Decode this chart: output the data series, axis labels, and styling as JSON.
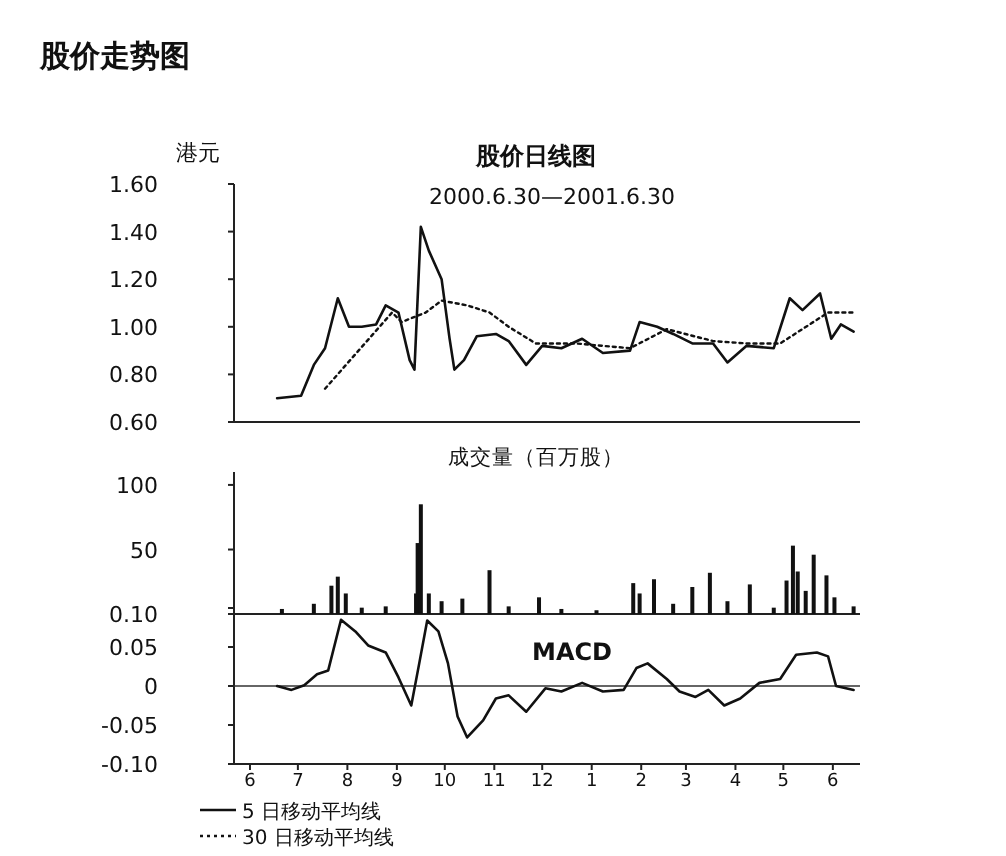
{
  "chart_data": [
    {
      "type": "line",
      "title": "股价走势图",
      "subtitle": "股价日线图",
      "ylabel": "港元",
      "annotations": [
        "2000.6.30—2001.6.30"
      ],
      "legend": "bottom",
      "tick_labels": "y",
      "grid": false,
      "xlim": [
        "2000-06-05",
        "2001-07-02"
      ],
      "ylim": [
        0.6,
        1.6
      ],
      "yticks": [
        {
          "value": 0.6,
          "label": "0.60"
        },
        {
          "value": 0.8,
          "label": "0.80"
        },
        {
          "value": 1.0,
          "label": "1.00"
        },
        {
          "value": 1.2,
          "label": "1.20"
        },
        {
          "value": 1.4,
          "label": "1.40"
        },
        {
          "value": 1.6,
          "label": "1.60"
        }
      ],
      "series": [
        {
          "name": "5 日移动平均线",
          "color": "#111111",
          "line_style": "solid",
          "x": [
            "2000-07-02",
            "2000-07-17",
            "2000-07-25",
            "2000-08-01",
            "2000-08-09",
            "2000-08-16",
            "2000-08-24",
            "2000-09-02",
            "2000-09-08",
            "2000-09-16",
            "2000-09-23",
            "2000-09-26",
            "2000-09-30",
            "2000-10-05",
            "2000-10-13",
            "2000-10-18",
            "2000-10-21",
            "2000-10-27",
            "2000-11-04",
            "2000-11-16",
            "2000-11-24",
            "2000-12-05",
            "2000-12-15",
            "2000-12-27",
            "2001-01-09",
            "2001-01-22",
            "2001-02-08",
            "2001-02-14",
            "2001-02-25",
            "2001-03-07",
            "2001-03-19",
            "2001-04-01",
            "2001-04-10",
            "2001-04-22",
            "2001-05-09",
            "2001-05-19",
            "2001-05-27",
            "2001-06-07",
            "2001-06-14",
            "2001-06-20",
            "2001-06-28"
          ],
          "values": [
            0.7,
            0.71,
            0.84,
            0.91,
            1.12,
            1.0,
            1.0,
            1.01,
            1.09,
            1.06,
            0.86,
            0.82,
            1.42,
            1.32,
            1.2,
            0.95,
            0.82,
            0.86,
            0.96,
            0.97,
            0.94,
            0.84,
            0.92,
            0.91,
            0.95,
            0.89,
            0.9,
            1.02,
            1.0,
            0.97,
            0.93,
            0.93,
            0.85,
            0.92,
            0.91,
            1.12,
            1.07,
            1.14,
            0.95,
            1.01,
            0.98
          ]
        },
        {
          "name": "30 日移动平均线",
          "color": "#111111",
          "line_style": "dotted",
          "x": [
            "2000-08-01",
            "2000-09-12",
            "2000-09-18",
            "2000-10-03",
            "2000-10-13",
            "2000-10-29",
            "2000-11-12",
            "2000-11-24",
            "2000-12-11",
            "2001-01-05",
            "2001-02-08",
            "2001-03-03",
            "2001-04-01",
            "2001-04-22",
            "2001-05-13",
            "2001-06-12",
            "2001-06-28"
          ],
          "values": [
            0.74,
            1.06,
            1.02,
            1.06,
            1.11,
            1.09,
            1.06,
            1.0,
            0.93,
            0.93,
            0.91,
            0.99,
            0.94,
            0.93,
            0.93,
            1.06,
            1.06
          ]
        }
      ]
    },
    {
      "type": "bar",
      "title": "成交量（百万股）",
      "tick_labels": "y",
      "grid": false,
      "color": "#111111",
      "xlim": [
        "2000-06-05",
        "2001-07-02"
      ],
      "ylim": [
        0.1,
        110
      ],
      "yticks": [
        {
          "value": 0.1,
          "label": "0.10"
        },
        50,
        100
      ],
      "x": [
        "2000-07-05",
        "2000-07-25",
        "2000-08-05",
        "2000-08-09",
        "2000-08-14",
        "2000-08-24",
        "2000-09-08",
        "2000-09-27",
        "2000-09-28",
        "2000-09-30",
        "2000-10-05",
        "2000-10-13",
        "2000-10-26",
        "2000-11-12",
        "2000-11-24",
        "2000-12-13",
        "2000-12-27",
        "2001-01-18",
        "2001-02-10",
        "2001-02-14",
        "2001-02-23",
        "2001-03-07",
        "2001-03-19",
        "2001-03-30",
        "2001-04-10",
        "2001-04-24",
        "2001-05-09",
        "2001-05-17",
        "2001-05-21",
        "2001-05-24",
        "2001-05-29",
        "2001-06-03",
        "2001-06-11",
        "2001-06-16",
        "2001-06-28"
      ],
      "values": [
        4,
        8,
        22,
        29,
        16,
        5,
        6,
        16,
        55,
        85,
        16,
        10,
        12,
        34,
        6,
        13,
        4,
        3,
        24,
        16,
        27,
        8,
        21,
        32,
        10,
        23,
        5,
        26,
        53,
        33,
        18,
        46,
        30,
        13,
        6
      ]
    },
    {
      "type": "line",
      "annotations": [
        "MACD"
      ],
      "grid": false,
      "line_style": "solid",
      "color": "#111111",
      "xlim": [
        "2000-06-05",
        "2001-07-02"
      ],
      "ylim": [
        -0.1,
        0.1
      ],
      "yticks": [
        {
          "value": -0.1,
          "label": "-0.10"
        },
        -0.05,
        0,
        0.05,
        {
          "value": 0.1,
          "label": null
        }
      ],
      "xticks": [
        {
          "value": "2000-06-15",
          "label": "6"
        },
        {
          "value": "2000-07-15",
          "label": "7"
        },
        {
          "value": "2000-08-15",
          "label": "8"
        },
        {
          "value": "2000-09-15",
          "label": "9"
        },
        {
          "value": "2000-10-15",
          "label": "10"
        },
        {
          "value": "2000-11-15",
          "label": "11"
        },
        {
          "value": "2000-12-15",
          "label": "12"
        },
        {
          "value": "2001-01-15",
          "label": "1"
        },
        {
          "value": "2001-02-15",
          "label": "2"
        },
        {
          "value": "2001-03-15",
          "label": "3"
        },
        {
          "value": "2001-04-15",
          "label": "4"
        },
        {
          "value": "2001-05-15",
          "label": "5"
        },
        {
          "value": "2001-06-15",
          "label": "6"
        }
      ],
      "ref_lines": [
        {
          "axis": "y",
          "value": 0
        }
      ],
      "x": [
        "2000-07-02",
        "2000-07-11",
        "2000-07-19",
        "2000-07-27",
        "2000-08-03",
        "2000-08-11",
        "2000-08-20",
        "2000-08-28",
        "2000-09-08",
        "2000-09-16",
        "2000-09-24",
        "2000-09-29",
        "2000-10-04",
        "2000-10-11",
        "2000-10-17",
        "2000-10-23",
        "2000-10-29",
        "2000-11-08",
        "2000-11-16",
        "2000-11-24",
        "2000-12-05",
        "2000-12-17",
        "2000-12-27",
        "2001-01-09",
        "2001-01-22",
        "2001-02-04",
        "2001-02-12",
        "2001-02-19",
        "2001-03-03",
        "2001-03-11",
        "2001-03-21",
        "2001-03-29",
        "2001-04-08",
        "2001-04-18",
        "2001-04-30",
        "2001-05-13",
        "2001-05-23",
        "2001-06-05",
        "2001-06-12",
        "2001-06-17",
        "2001-06-28"
      ],
      "values": [
        0,
        -0.005,
        0.001,
        0.015,
        0.02,
        0.085,
        0.07,
        0.052,
        0.043,
        0.011,
        -0.025,
        0.029,
        0.084,
        0.07,
        0.029,
        -0.039,
        -0.066,
        -0.044,
        -0.016,
        -0.012,
        -0.033,
        -0.003,
        -0.007,
        0.004,
        -0.007,
        -0.005,
        0.023,
        0.029,
        0.009,
        -0.007,
        -0.014,
        -0.005,
        -0.025,
        -0.016,
        0.004,
        0.009,
        0.04,
        0.043,
        0.038,
        0,
        -0.005
      ]
    }
  ]
}
